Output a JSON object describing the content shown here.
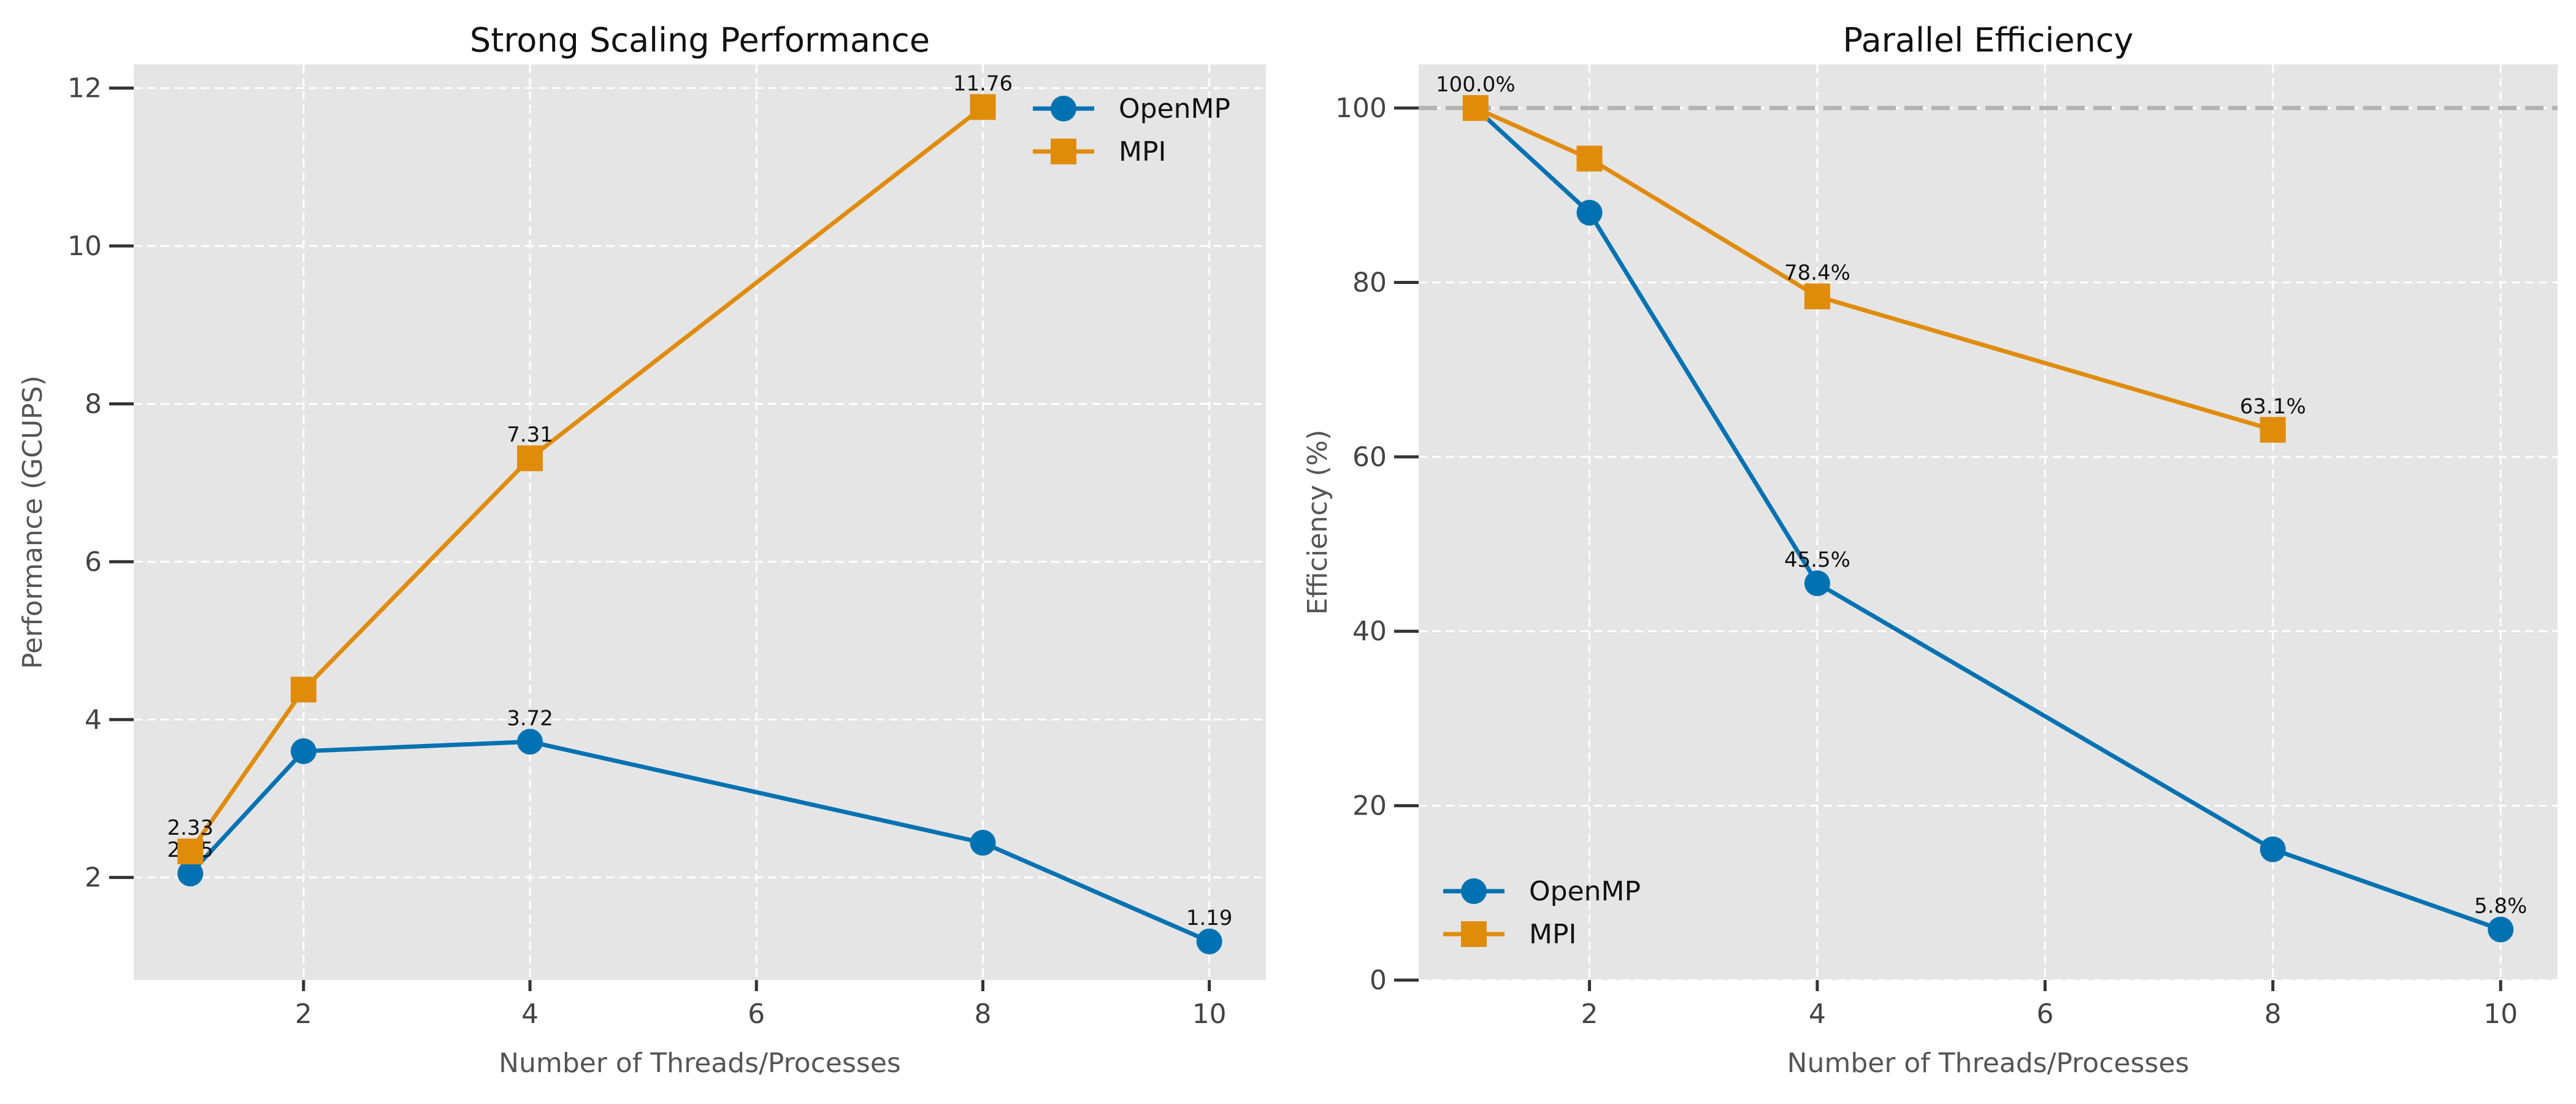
{
  "colors": {
    "openmp": "#0072b2",
    "mpi": "#e08c0b",
    "reference": "#b3b3b3"
  },
  "chart_data": [
    {
      "type": "line",
      "title": "Strong Scaling Performance",
      "xlabel": "Number of Threads/Processes",
      "ylabel": "Performance (GCUPS)",
      "xlim": [
        0.5,
        10.5
      ],
      "ylim": [
        0.7,
        12.3
      ],
      "xticks": [
        2,
        4,
        6,
        8,
        10
      ],
      "yticks": [
        2,
        4,
        6,
        8,
        10,
        12
      ],
      "grid": true,
      "legend": "top-right",
      "series": [
        {
          "name": "OpenMP",
          "marker": "circle",
          "color": "#0072b2",
          "x": [
            1,
            2,
            4,
            8,
            10
          ],
          "y": [
            2.05,
            3.6,
            3.72,
            2.44,
            1.19
          ],
          "labels": [
            "2.05",
            "",
            "3.72",
            "",
            "1.19"
          ]
        },
        {
          "name": "MPI",
          "marker": "square",
          "color": "#e08c0b",
          "x": [
            1,
            2,
            4,
            8
          ],
          "y": [
            2.33,
            4.38,
            7.31,
            11.76
          ],
          "labels": [
            "2.33",
            "",
            "7.31",
            "11.76"
          ]
        }
      ]
    },
    {
      "type": "line",
      "title": "Parallel Efficiency",
      "xlabel": "Number of Threads/Processes",
      "ylabel": "Efficiency (%)",
      "xlim": [
        0.5,
        10.5
      ],
      "ylim": [
        0,
        105
      ],
      "xticks": [
        2,
        4,
        6,
        8,
        10
      ],
      "yticks": [
        0,
        20,
        40,
        60,
        80,
        100
      ],
      "grid": true,
      "legend": "bottom-left",
      "reference_line": 100,
      "series": [
        {
          "name": "OpenMP",
          "marker": "circle",
          "color": "#0072b2",
          "x": [
            1,
            2,
            4,
            8,
            10
          ],
          "y": [
            100,
            88,
            45.5,
            15,
            5.8
          ],
          "labels": [
            "",
            "",
            "45.5%",
            "",
            "5.8%"
          ]
        },
        {
          "name": "MPI",
          "marker": "square",
          "color": "#e08c0b",
          "x": [
            1,
            2,
            4,
            8
          ],
          "y": [
            100,
            94.2,
            78.4,
            63.1
          ],
          "labels": [
            "100.0%",
            "",
            "78.4%",
            "63.1%"
          ]
        }
      ]
    }
  ]
}
